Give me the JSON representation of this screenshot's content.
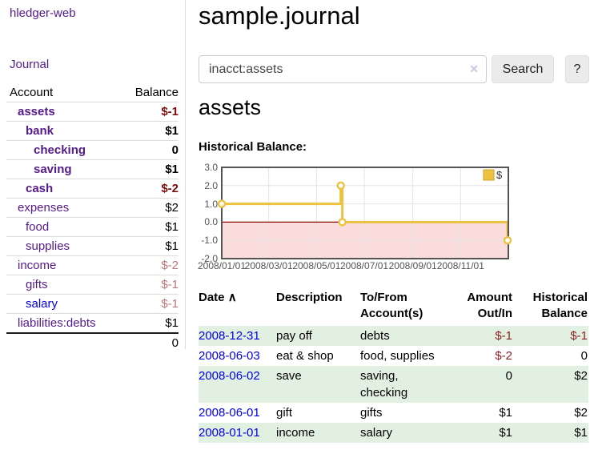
{
  "app": {
    "title": "hledger-web",
    "nav_journal": "Journal"
  },
  "colors": {
    "link_purple": "#551a8b",
    "link_blue": "#0000e6",
    "negative_dark": "#7c0d0d",
    "negative_soft": "#b97777",
    "table_negative": "#8b2020",
    "row_stripe_green": "#e2f0e2",
    "chart_line": "#edc240",
    "chart_negative_region": "#fbdcdc",
    "chart_zero_line": "#8b0000",
    "chart_border": "#545454",
    "chart_grid": "#e4e4e4"
  },
  "sidebar": {
    "table": {
      "col_account": "Account",
      "col_balance": "Balance"
    },
    "accounts": [
      {
        "name": "assets",
        "balance": "$-1",
        "indent": 1,
        "bold": true,
        "neg": true
      },
      {
        "name": "bank",
        "balance": "$1",
        "indent": 2,
        "bold": true
      },
      {
        "name": "checking",
        "balance": "0",
        "indent": 3,
        "bold": true
      },
      {
        "name": "saving",
        "balance": "$1",
        "indent": 3,
        "bold": true
      },
      {
        "name": "cash",
        "balance": "$-2",
        "indent": 2,
        "bold": true,
        "neg": true
      },
      {
        "name": "expenses",
        "balance": "$2",
        "indent": 1
      },
      {
        "name": "food",
        "balance": "$1",
        "indent": 2
      },
      {
        "name": "supplies",
        "balance": "$1",
        "indent": 2
      },
      {
        "name": "income",
        "balance": "$-2",
        "indent": 1,
        "neg_soft": true
      },
      {
        "name": "gifts",
        "balance": "$-1",
        "indent": 2,
        "neg_soft": true
      },
      {
        "name": "salary",
        "balance": "$-1",
        "indent": 2,
        "neg_soft": true,
        "blue": true
      },
      {
        "name": "liabilities:debts",
        "balance": "$1",
        "indent": 1
      }
    ],
    "total": "0"
  },
  "main": {
    "title": "sample.journal",
    "search": {
      "value": "inacct:assets",
      "clear_icon": "✕",
      "button": "Search",
      "help": "?"
    },
    "account_heading": "assets",
    "chart_heading": "Historical Balance:"
  },
  "chart_data": {
    "type": "line",
    "step": true,
    "title": "Historical Balance",
    "legend": [
      {
        "label": "$",
        "color": "#edc240"
      }
    ],
    "legend_position": "top-right",
    "x_start_date": "2008-01-01",
    "x_end_date": "2009-01-01",
    "ylim": [
      -2,
      3
    ],
    "yticks": [
      {
        "label": "3.0",
        "value": 3
      },
      {
        "label": "2.0",
        "value": 2
      },
      {
        "label": "1.0",
        "value": 1
      },
      {
        "label": "0.0",
        "value": 0
      },
      {
        "label": "-1.0",
        "value": -1
      },
      {
        "label": "-2.0",
        "value": -2
      }
    ],
    "xticks": [
      {
        "label": "2008/01/01",
        "date": "2008-01-01"
      },
      {
        "label": "2008/03/01",
        "date": "2008-03-01"
      },
      {
        "label": "2008/05/01",
        "date": "2008-05-01"
      },
      {
        "label": "2008/07/01",
        "date": "2008-07-01"
      },
      {
        "label": "2008/09/01",
        "date": "2008-09-01"
      },
      {
        "label": "2008/11/01",
        "date": "2008-11-01"
      }
    ],
    "series": [
      {
        "name": "$",
        "points": [
          {
            "date": "2008-01-01",
            "value": 1
          },
          {
            "date": "2008-06-01",
            "value": 2
          },
          {
            "date": "2008-06-03",
            "value": 0
          },
          {
            "date": "2008-12-31",
            "value": -1
          }
        ]
      }
    ],
    "grid": true
  },
  "register": {
    "headers": {
      "date": "Date",
      "sort_glyph": "∧",
      "description": "Description",
      "accounts": "To/From\nAccount(s)",
      "amount": "Amount\nOut/In",
      "balance": "Historical\nBalance"
    },
    "rows": [
      {
        "date": "2008-12-31",
        "description": "pay off",
        "accounts": "debts",
        "amount": "$-1",
        "amount_neg": true,
        "balance": "$-1",
        "balance_neg": true,
        "shaded": true
      },
      {
        "date": "2008-06-03",
        "description": "eat & shop",
        "accounts": "food, supplies",
        "amount": "$-2",
        "amount_neg": true,
        "balance": "0",
        "balance_neg": false,
        "shaded": false
      },
      {
        "date": "2008-06-02",
        "description": "save",
        "accounts": "saving,\nchecking",
        "amount": "0",
        "amount_neg": false,
        "balance": "$2",
        "balance_neg": false,
        "shaded": true
      },
      {
        "date": "2008-06-01",
        "description": "gift",
        "accounts": "gifts",
        "amount": "$1",
        "amount_neg": false,
        "balance": "$2",
        "balance_neg": false,
        "shaded": false
      },
      {
        "date": "2008-01-01",
        "description": "income",
        "accounts": "salary",
        "amount": "$1",
        "amount_neg": false,
        "balance": "$1",
        "balance_neg": false,
        "shaded": true
      }
    ]
  }
}
